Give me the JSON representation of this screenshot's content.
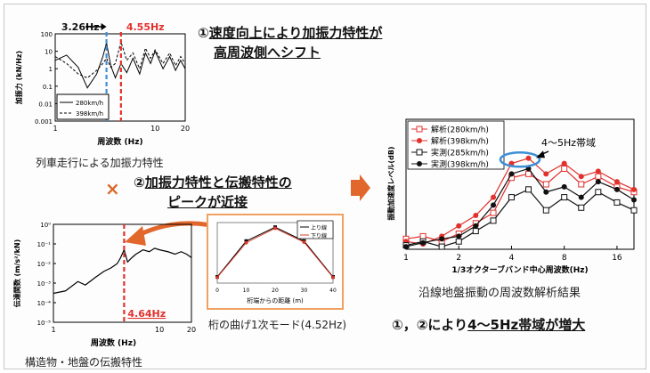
{
  "texts": {
    "point1_prefix": "①",
    "point1_line1": "速度向上により加振力特性が",
    "point1_line2": "高周波側へシフト",
    "point2_prefix": "②",
    "point2_line1": "加振力特性と伝搬特性の",
    "point2_line2": "ピークが近接",
    "times_symbol": "×",
    "caption_force": "列車走行による加振力特性",
    "caption_transfer": "構造物・地盤の伝搬特性",
    "caption_mode": "桁の曲げ1次モード(4.52Hz)",
    "caption_result": "沿線地盤振動の周波数解析結果",
    "conclusion_prefix": "①，②により",
    "conclusion_emph": "4～5Hz帯域が増大",
    "band_label": "4～5Hz帯域"
  },
  "colors": {
    "accent_red": "#e0312d",
    "accent_blue": "#3d8fd6",
    "arrow_orange": "#e2672c",
    "mode_box": "#f0a060"
  },
  "chart_data": [
    {
      "type": "line",
      "name": "force",
      "xlabel": "周波数 (Hz)",
      "ylabel": "加振力 (kN/Hz)",
      "x_scale": "log",
      "y_scale": "log",
      "xlim": [
        1,
        20
      ],
      "ylim": [
        0.001,
        100
      ],
      "xticks": [
        "1",
        "10",
        "20"
      ],
      "yticks": [
        "0.001",
        "0.01",
        "0.1",
        "1",
        "10",
        "100"
      ],
      "markers": [
        {
          "label": "3.26Hz",
          "x": 3.26,
          "color": "#3d8fd6"
        },
        {
          "label": "4.55Hz",
          "x": 4.55,
          "color": "#e0312d"
        }
      ],
      "series": [
        {
          "name": "280km/h",
          "style": "solid",
          "x": [
            1,
            1.3,
            1.7,
            2.1,
            2.6,
            3.0,
            3.26,
            3.6,
            4.0,
            4.55,
            5.2,
            6,
            7,
            8,
            9,
            10,
            12,
            14,
            16,
            18,
            20
          ],
          "y": [
            3,
            6,
            1.2,
            0.08,
            0.5,
            5,
            30,
            1.5,
            0.3,
            2,
            0.6,
            4,
            0.5,
            8,
            2,
            10,
            1,
            5,
            0.8,
            3,
            1
          ]
        },
        {
          "name": "398km/h",
          "style": "dashed",
          "x": [
            1,
            1.3,
            1.7,
            2.1,
            2.6,
            3.0,
            3.26,
            3.6,
            4.0,
            4.55,
            5.2,
            6,
            7,
            8,
            9,
            10,
            12,
            14,
            16,
            18,
            20
          ],
          "y": [
            5,
            2,
            0.5,
            0.3,
            0.8,
            2,
            4,
            1.2,
            2,
            35,
            3,
            8,
            1,
            15,
            4,
            12,
            2,
            8,
            1.5,
            5,
            2
          ]
        }
      ]
    },
    {
      "type": "line",
      "name": "transfer",
      "xlabel": "周波数 (Hz)",
      "ylabel": "伝達関数 (m/s²/kN)",
      "x_scale": "log",
      "y_scale": "log",
      "xlim": [
        1,
        20
      ],
      "ylim": [
        1e-05,
        1
      ],
      "xticks": [
        "1",
        "10",
        "20"
      ],
      "yticks": [
        "10⁻⁵",
        "10⁻⁴",
        "10⁻³",
        "10⁻²",
        "10⁻¹",
        "10⁰"
      ],
      "markers": [
        {
          "label": "4.64Hz",
          "x": 4.64,
          "color": "#e0312d"
        }
      ],
      "series": [
        {
          "name": "transfer",
          "style": "solid",
          "x": [
            1,
            1.3,
            1.7,
            2,
            2.5,
            3,
            3.5,
            4,
            4.3,
            4.64,
            5,
            5.5,
            6,
            7,
            8,
            9,
            10,
            12,
            14,
            16,
            18,
            20
          ],
          "y": [
            0.0003,
            0.0004,
            0.0012,
            0.0008,
            0.002,
            0.004,
            0.006,
            0.01,
            0.02,
            0.05,
            0.012,
            0.02,
            0.03,
            0.05,
            0.04,
            0.06,
            0.05,
            0.04,
            0.03,
            0.04,
            0.03,
            0.02
          ]
        }
      ]
    },
    {
      "type": "line",
      "name": "mode_shape",
      "xlabel": "桁端からの距離 (m)",
      "xticks": [
        "0",
        "10",
        "20",
        "30",
        "40"
      ],
      "series": [
        {
          "name": "上り線",
          "marker": "square",
          "x": [
            0,
            10,
            20,
            30,
            40
          ],
          "y": [
            0.05,
            0.72,
            0.98,
            0.72,
            0.05
          ]
        },
        {
          "name": "下り線",
          "marker": "circle",
          "x": [
            0,
            10,
            20,
            30,
            40
          ],
          "y": [
            0.04,
            0.69,
            0.96,
            0.7,
            0.04
          ]
        }
      ]
    },
    {
      "type": "line",
      "name": "result",
      "xlabel": "1/3オクターブバンド中心周波数(Hz)",
      "ylabel": "振動加速度レベル(dB)",
      "x_scale": "log2",
      "xlim": [
        1,
        20
      ],
      "ylim": [
        0,
        100
      ],
      "xticks": [
        "1",
        "2",
        "4",
        "8",
        "16"
      ],
      "categories": [
        1,
        1.25,
        1.6,
        2,
        2.5,
        3.15,
        4,
        5,
        6.3,
        8,
        10,
        12.5,
        16,
        20
      ],
      "series": [
        {
          "name": "解析(280km/h)",
          "color": "#e0312d",
          "marker": "square-open",
          "values": [
            8,
            10,
            6,
            12,
            20,
            28,
            55,
            58,
            50,
            62,
            50,
            56,
            48,
            44
          ]
        },
        {
          "name": "解析(398km/h)",
          "color": "#e0312d",
          "marker": "circle-filled",
          "values": [
            6,
            4,
            10,
            18,
            26,
            40,
            66,
            70,
            58,
            66,
            56,
            60,
            52,
            46
          ]
        },
        {
          "name": "実測(285km/h)",
          "color": "#111111",
          "marker": "square-open",
          "values": [
            3,
            6,
            2,
            6,
            14,
            22,
            40,
            46,
            30,
            40,
            32,
            44,
            36,
            30
          ]
        },
        {
          "name": "実測(398km/h)",
          "color": "#111111",
          "marker": "circle-filled",
          "values": [
            2,
            5,
            8,
            10,
            18,
            34,
            58,
            62,
            44,
            48,
            40,
            52,
            46,
            38
          ]
        }
      ]
    }
  ]
}
